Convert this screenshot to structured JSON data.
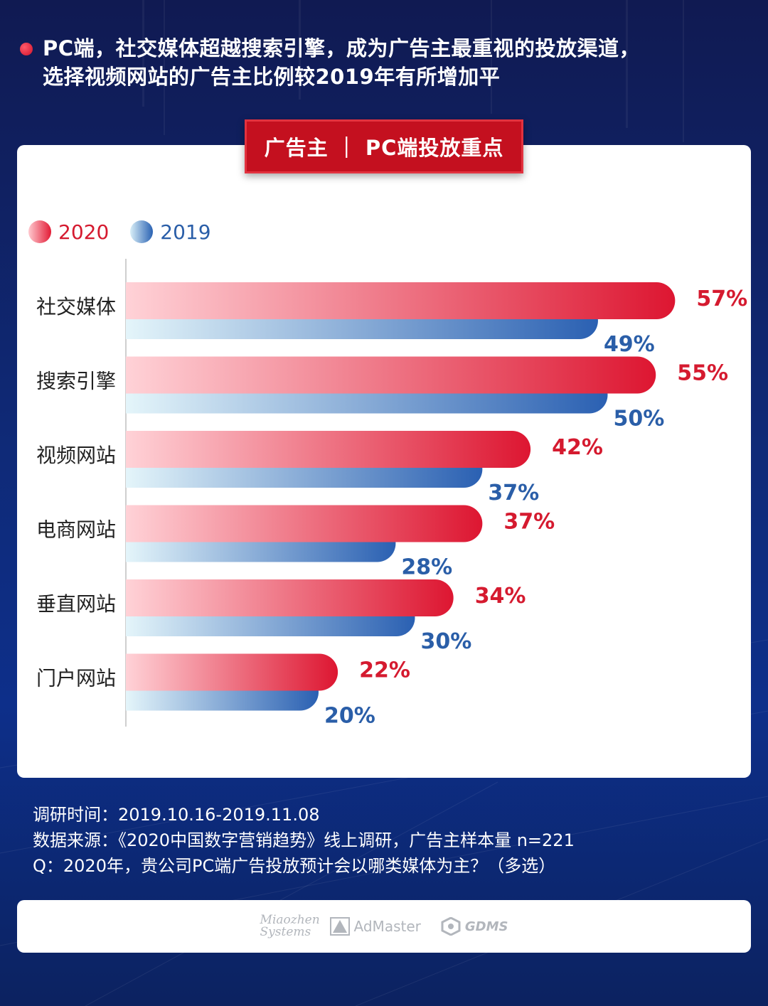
{
  "headline": {
    "line1": "PC端，社交媒体超越搜索引擎，成为广告主最重视的投放渠道，",
    "line2": "选择视频网站的广告主比例较2019年有所增加平"
  },
  "chart_title": "广告主 ｜ PC端投放重点",
  "colors": {
    "series_2020": "#d51a2f",
    "series_2019": "#2a5ea8"
  },
  "chart_data": {
    "type": "bar",
    "orientation": "horizontal",
    "title": "广告主 ｜ PC端投放重点",
    "categories": [
      "社交媒体",
      "搜索引擎",
      "视频网站",
      "电商网站",
      "垂直网站",
      "门户网站"
    ],
    "series": [
      {
        "name": "2020",
        "values": [
          57,
          55,
          42,
          37,
          34,
          22
        ],
        "labels": [
          "57%",
          "55%",
          "42%",
          "37%",
          "34%",
          "22%"
        ]
      },
      {
        "name": "2019",
        "values": [
          49,
          50,
          37,
          28,
          30,
          20
        ],
        "labels": [
          "49%",
          "50%",
          "37%",
          "28%",
          "30%",
          "20%"
        ]
      }
    ],
    "unit": "%",
    "legend_position": "top-left",
    "grid": false
  },
  "footer": {
    "survey_time": "调研时间：2019.10.16-2019.11.08",
    "data_source": "数据来源：《2020中国数字营销趋势》线上调研，广告主样本量 n=221",
    "question": "Q：2020年，贵公司PC端广告投放预计会以哪类媒体为主？（多选）"
  },
  "logos": {
    "miaozhen_line1": "Miaozhen",
    "miaozhen_line2": "Systems",
    "admaster": "AdMaster",
    "gdms": "GDMS"
  }
}
